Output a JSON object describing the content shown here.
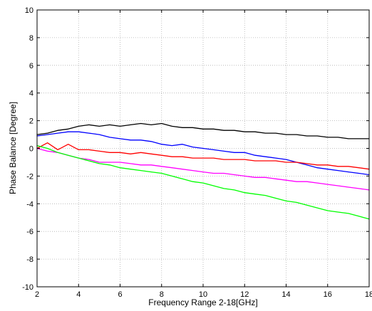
{
  "chart_data": {
    "type": "line",
    "title": "",
    "xlabel": "Frequency Range 2-18[GHz]",
    "ylabel": "Phase Balance [Degree]",
    "xlim": [
      2,
      18
    ],
    "ylim": [
      -10,
      10
    ],
    "xticks": [
      2,
      4,
      6,
      8,
      10,
      12,
      14,
      16,
      18
    ],
    "yticks": [
      -10,
      -8,
      -6,
      -4,
      -2,
      0,
      2,
      4,
      6,
      8,
      10
    ],
    "grid": true,
    "legend": "none",
    "x": [
      2,
      2.5,
      3,
      3.5,
      4,
      4.5,
      5,
      5.5,
      6,
      6.5,
      7,
      7.5,
      8,
      8.5,
      9,
      9.5,
      10,
      10.5,
      11,
      11.5,
      12,
      12.5,
      13,
      13.5,
      14,
      14.5,
      15,
      15.5,
      16,
      16.5,
      17,
      17.5,
      18
    ],
    "series": [
      {
        "color": "#000000",
        "values": [
          1.0,
          1.1,
          1.3,
          1.4,
          1.6,
          1.7,
          1.6,
          1.7,
          1.6,
          1.7,
          1.8,
          1.7,
          1.8,
          1.6,
          1.5,
          1.5,
          1.4,
          1.4,
          1.3,
          1.3,
          1.2,
          1.2,
          1.1,
          1.1,
          1.0,
          1.0,
          0.9,
          0.9,
          0.8,
          0.8,
          0.7,
          0.7,
          0.7
        ]
      },
      {
        "color": "#0000ff",
        "values": [
          0.9,
          1.0,
          1.1,
          1.2,
          1.2,
          1.1,
          1.0,
          0.8,
          0.7,
          0.6,
          0.6,
          0.5,
          0.3,
          0.2,
          0.3,
          0.1,
          0.0,
          -0.1,
          -0.2,
          -0.3,
          -0.3,
          -0.5,
          -0.6,
          -0.7,
          -0.8,
          -1.0,
          -1.2,
          -1.4,
          -1.5,
          -1.6,
          -1.7,
          -1.8,
          -1.9
        ]
      },
      {
        "color": "#ff0000",
        "values": [
          0.0,
          0.4,
          -0.1,
          0.3,
          -0.1,
          -0.1,
          -0.2,
          -0.3,
          -0.3,
          -0.4,
          -0.3,
          -0.4,
          -0.5,
          -0.6,
          -0.6,
          -0.7,
          -0.7,
          -0.7,
          -0.8,
          -0.8,
          -0.8,
          -0.9,
          -0.9,
          -0.9,
          -1.0,
          -1.0,
          -1.1,
          -1.2,
          -1.2,
          -1.3,
          -1.3,
          -1.4,
          -1.5
        ]
      },
      {
        "color": "#ff00ff",
        "values": [
          0.0,
          -0.2,
          -0.3,
          -0.5,
          -0.7,
          -0.8,
          -1.0,
          -1.0,
          -1.0,
          -1.1,
          -1.2,
          -1.2,
          -1.3,
          -1.4,
          -1.5,
          -1.6,
          -1.7,
          -1.8,
          -1.8,
          -1.9,
          -2.0,
          -2.1,
          -2.1,
          -2.2,
          -2.3,
          -2.4,
          -2.4,
          -2.5,
          -2.6,
          -2.7,
          -2.8,
          -2.9,
          -3.0
        ]
      },
      {
        "color": "#00ff00",
        "values": [
          0.2,
          0.0,
          -0.3,
          -0.5,
          -0.7,
          -0.9,
          -1.1,
          -1.2,
          -1.4,
          -1.5,
          -1.6,
          -1.7,
          -1.8,
          -2.0,
          -2.2,
          -2.4,
          -2.5,
          -2.7,
          -2.9,
          -3.0,
          -3.2,
          -3.3,
          -3.4,
          -3.6,
          -3.8,
          -3.9,
          -4.1,
          -4.3,
          -4.5,
          -4.6,
          -4.7,
          -4.9,
          -5.1
        ]
      }
    ]
  }
}
